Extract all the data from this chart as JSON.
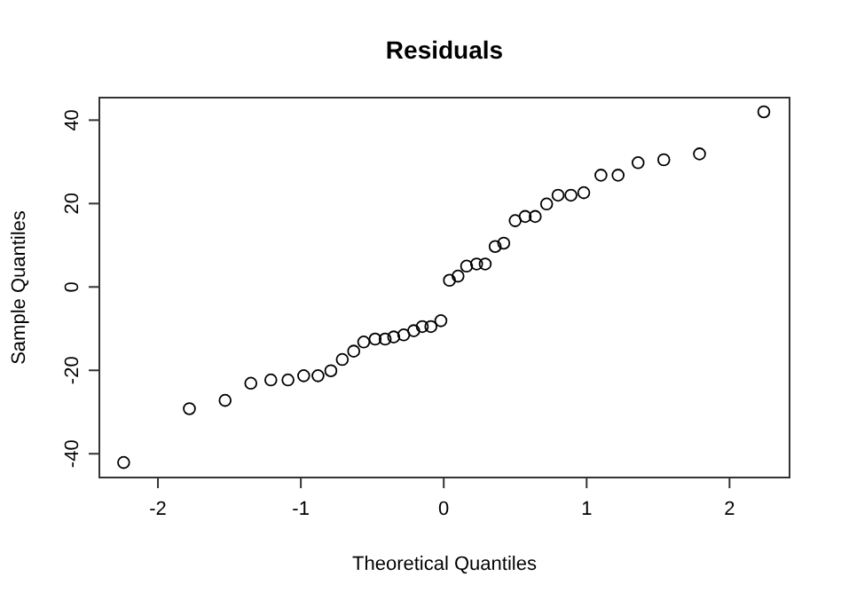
{
  "chart_data": {
    "type": "scatter",
    "title": "Residuals",
    "xlabel": "Theoretical Quantiles",
    "ylabel": "Sample Quantiles",
    "marker": "circle",
    "grid": false,
    "x": [
      -2.24,
      -1.78,
      -1.53,
      -1.35,
      -1.21,
      -1.09,
      -0.98,
      -0.88,
      -0.79,
      -0.71,
      -0.63,
      -0.56,
      -0.48,
      -0.41,
      -0.35,
      -0.28,
      -0.21,
      -0.15,
      -0.09,
      -0.02,
      0.04,
      0.1,
      0.16,
      0.23,
      0.29,
      0.36,
      0.42,
      0.5,
      0.57,
      0.64,
      0.72,
      0.8,
      0.89,
      0.98,
      1.1,
      1.22,
      1.36,
      1.54,
      1.79,
      2.24
    ],
    "values": [
      -42.1,
      -29.2,
      -27.2,
      -23.1,
      -22.3,
      -22.3,
      -21.3,
      -21.3,
      -20.1,
      -17.4,
      -15.4,
      -13.2,
      -12.5,
      -12.5,
      -12.0,
      -11.5,
      -10.5,
      -9.5,
      -9.5,
      -8.1,
      1.6,
      2.6,
      5.0,
      5.5,
      5.5,
      9.7,
      10.5,
      15.9,
      16.9,
      16.9,
      19.9,
      22.0,
      22.0,
      22.6,
      26.8,
      26.8,
      29.8,
      30.5,
      31.9,
      42.0
    ],
    "color": "#000000",
    "xlim": [
      -2.41,
      2.42
    ],
    "ylim": [
      -45.7,
      45.4
    ],
    "xticks": [
      -2,
      -1,
      0,
      1,
      2
    ],
    "yticks": [
      -40,
      -20,
      0,
      20,
      40
    ]
  }
}
